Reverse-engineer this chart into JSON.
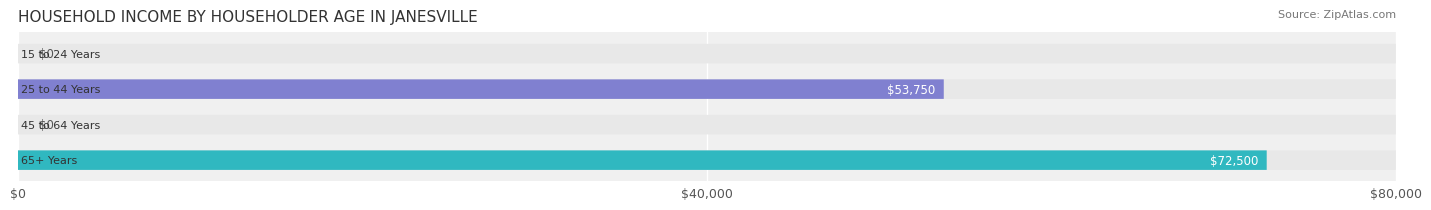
{
  "title": "HOUSEHOLD INCOME BY HOUSEHOLDER AGE IN JANESVILLE",
  "source": "Source: ZipAtlas.com",
  "categories": [
    "15 to 24 Years",
    "25 to 44 Years",
    "45 to 64 Years",
    "65+ Years"
  ],
  "values": [
    0,
    53750,
    0,
    72500
  ],
  "bar_colors": [
    "#f08080",
    "#8080d0",
    "#b090c0",
    "#30b8c0"
  ],
  "label_colors": [
    "#555555",
    "#ffffff",
    "#555555",
    "#ffffff"
  ],
  "value_labels": [
    "$0",
    "$53,750",
    "$0",
    "$72,500"
  ],
  "xlim": [
    0,
    80000
  ],
  "xticks": [
    0,
    40000,
    80000
  ],
  "xtick_labels": [
    "$0",
    "$40,000",
    "$80,000"
  ],
  "bg_color": "#f0f0f0",
  "fig_bg_color": "#ffffff",
  "title_fontsize": 11,
  "bar_height": 0.55,
  "grid_color": "#ffffff"
}
